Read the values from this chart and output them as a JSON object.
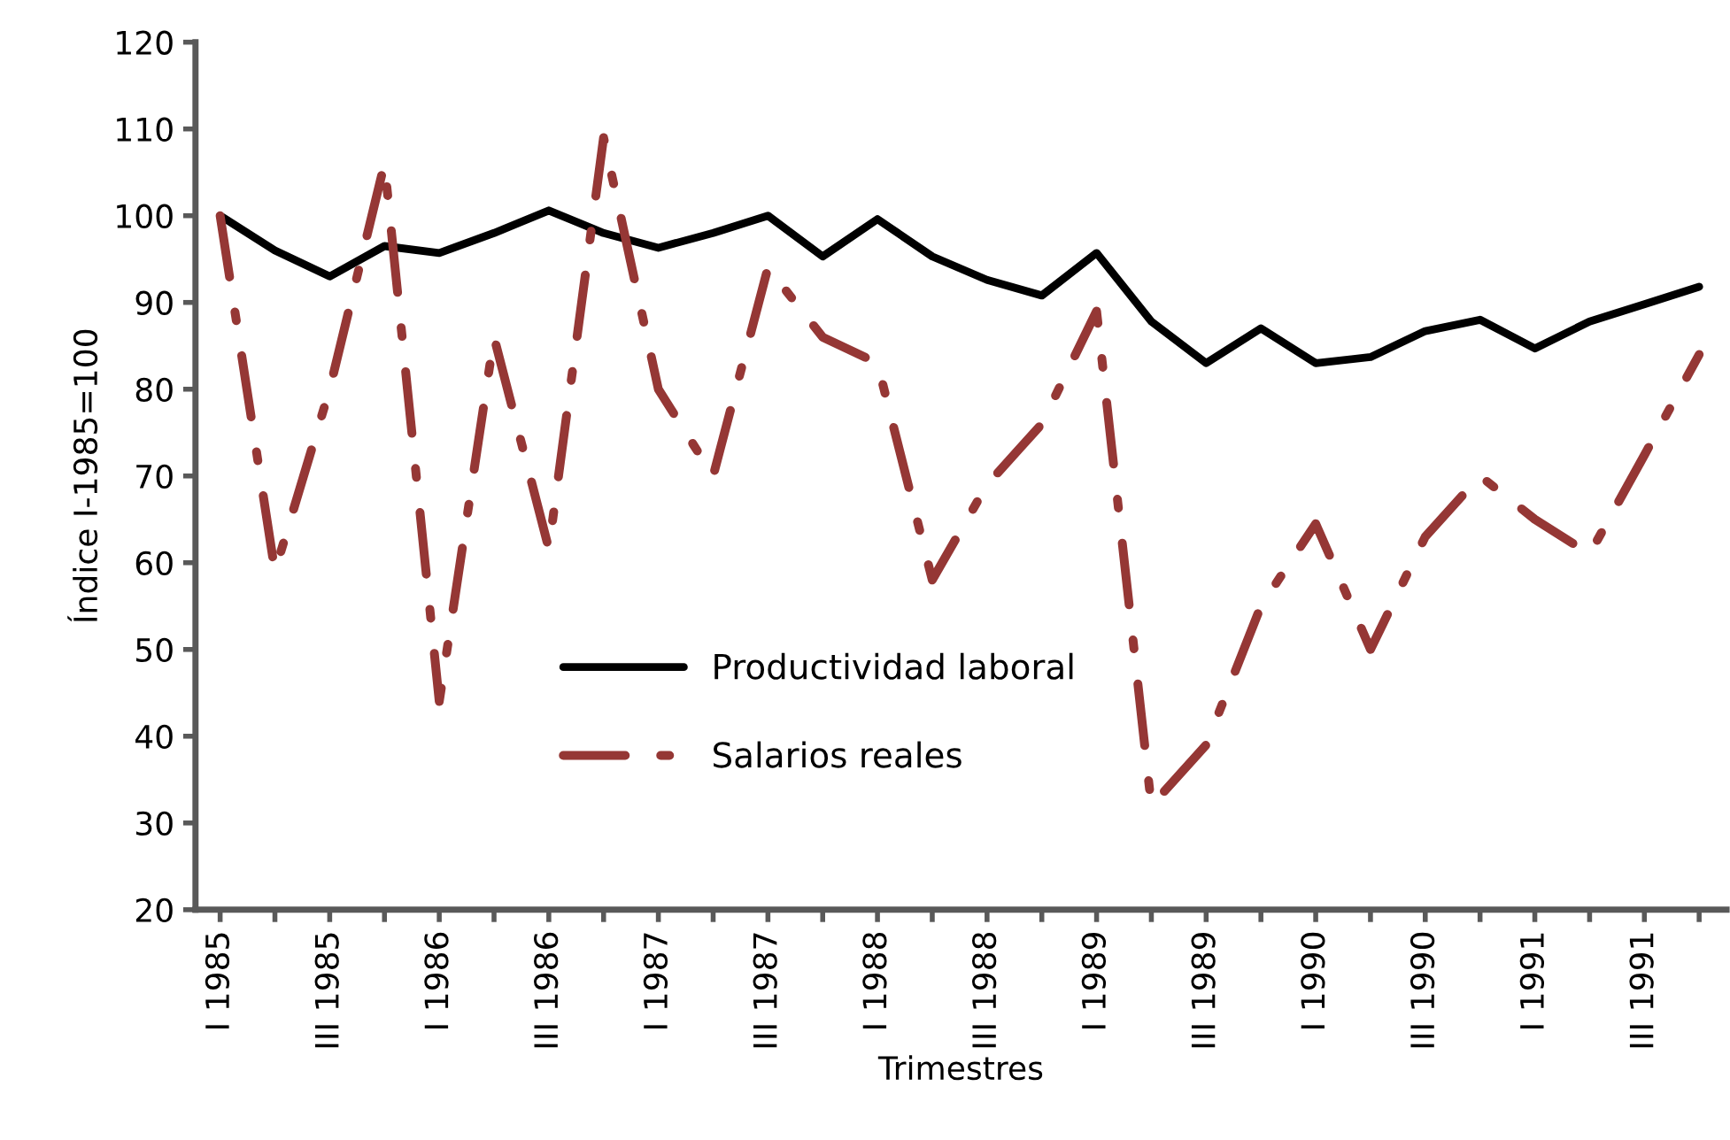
{
  "chart_data": {
    "type": "line",
    "xlabel": "Trimestres",
    "ylabel": "Índice I-1985=100",
    "categories": [
      "I 1985",
      null,
      "III 1985",
      null,
      "I 1986",
      null,
      "III 1986",
      null,
      "I 1987",
      null,
      "III 1987",
      null,
      "I 1988",
      null,
      "III 1988",
      null,
      "I 1989",
      null,
      "III 1989",
      null,
      "I 1990",
      null,
      "III 1990",
      null,
      "I 1991",
      null,
      "III 1991",
      null
    ],
    "series": [
      {
        "name": "Productividad laboral",
        "color": "#000000",
        "line_style": "solid",
        "values": [
          100,
          96,
          93,
          96.5,
          95.7,
          98,
          100.6,
          98,
          96.3,
          98,
          100,
          95.3,
          99.6,
          95.3,
          92.6,
          90.8,
          95.7,
          87.8,
          83,
          87,
          83,
          83.7,
          86.7,
          88,
          84.7,
          87.8,
          89.8,
          91.8
        ]
      },
      {
        "name": "Salarios reales",
        "color": "#953735",
        "line_style": "dashed",
        "values": [
          100,
          59,
          80,
          106,
          44,
          86,
          61.6,
          109,
          80,
          70,
          94,
          86,
          83,
          58,
          69,
          76,
          89,
          32,
          39,
          55,
          64.5,
          50,
          63,
          70,
          65,
          61,
          72.4,
          84
        ]
      }
    ],
    "ylim": [
      20,
      120
    ],
    "yticks": [
      20,
      30,
      40,
      50,
      60,
      70,
      80,
      90,
      100,
      110,
      120
    ],
    "grid": false,
    "legend": "bottom",
    "marker": "none"
  }
}
